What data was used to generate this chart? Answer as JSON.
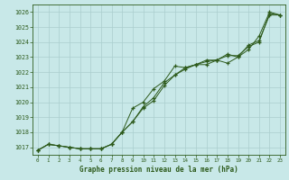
{
  "title": "Graphe pression niveau de la mer (hPa)",
  "bg_color": "#c8e8e8",
  "grid_color": "#b8d8d8",
  "line_color": "#2d5a1b",
  "marker_color": "#2d5a1b",
  "ylabel_color": "#2d5a1b",
  "xlabel_color": "#2d5a1b",
  "xlim": [
    -0.5,
    23.5
  ],
  "ylim": [
    1016.5,
    1026.5
  ],
  "yticks": [
    1017,
    1018,
    1019,
    1020,
    1021,
    1022,
    1023,
    1024,
    1025,
    1026
  ],
  "xticks": [
    0,
    1,
    2,
    3,
    4,
    5,
    6,
    7,
    8,
    9,
    10,
    11,
    12,
    13,
    14,
    15,
    16,
    17,
    18,
    19,
    20,
    21,
    22,
    23
  ],
  "series1": [
    1016.8,
    1017.2,
    1017.1,
    1017.0,
    1016.9,
    1016.9,
    1016.9,
    1017.2,
    1018.0,
    1018.7,
    1019.6,
    1020.1,
    1021.1,
    1021.8,
    1022.2,
    1022.5,
    1022.5,
    1022.8,
    1023.2,
    1023.0,
    1023.8,
    1024.1,
    1025.8,
    1025.8
  ],
  "series2": [
    1016.8,
    1017.2,
    1017.1,
    1017.0,
    1016.9,
    1016.9,
    1016.9,
    1017.2,
    1018.0,
    1019.6,
    1020.0,
    1020.9,
    1021.4,
    1022.4,
    1022.3,
    1022.5,
    1022.8,
    1022.8,
    1022.6,
    1023.0,
    1023.5,
    1024.4,
    1026.0,
    1025.8
  ],
  "series3": [
    1016.8,
    1017.2,
    1017.1,
    1017.0,
    1016.9,
    1016.9,
    1016.9,
    1017.2,
    1018.0,
    1018.7,
    1019.7,
    1020.3,
    1021.3,
    1021.8,
    1022.3,
    1022.5,
    1022.7,
    1022.8,
    1023.1,
    1023.1,
    1023.7,
    1024.0,
    1025.9,
    1025.8
  ]
}
